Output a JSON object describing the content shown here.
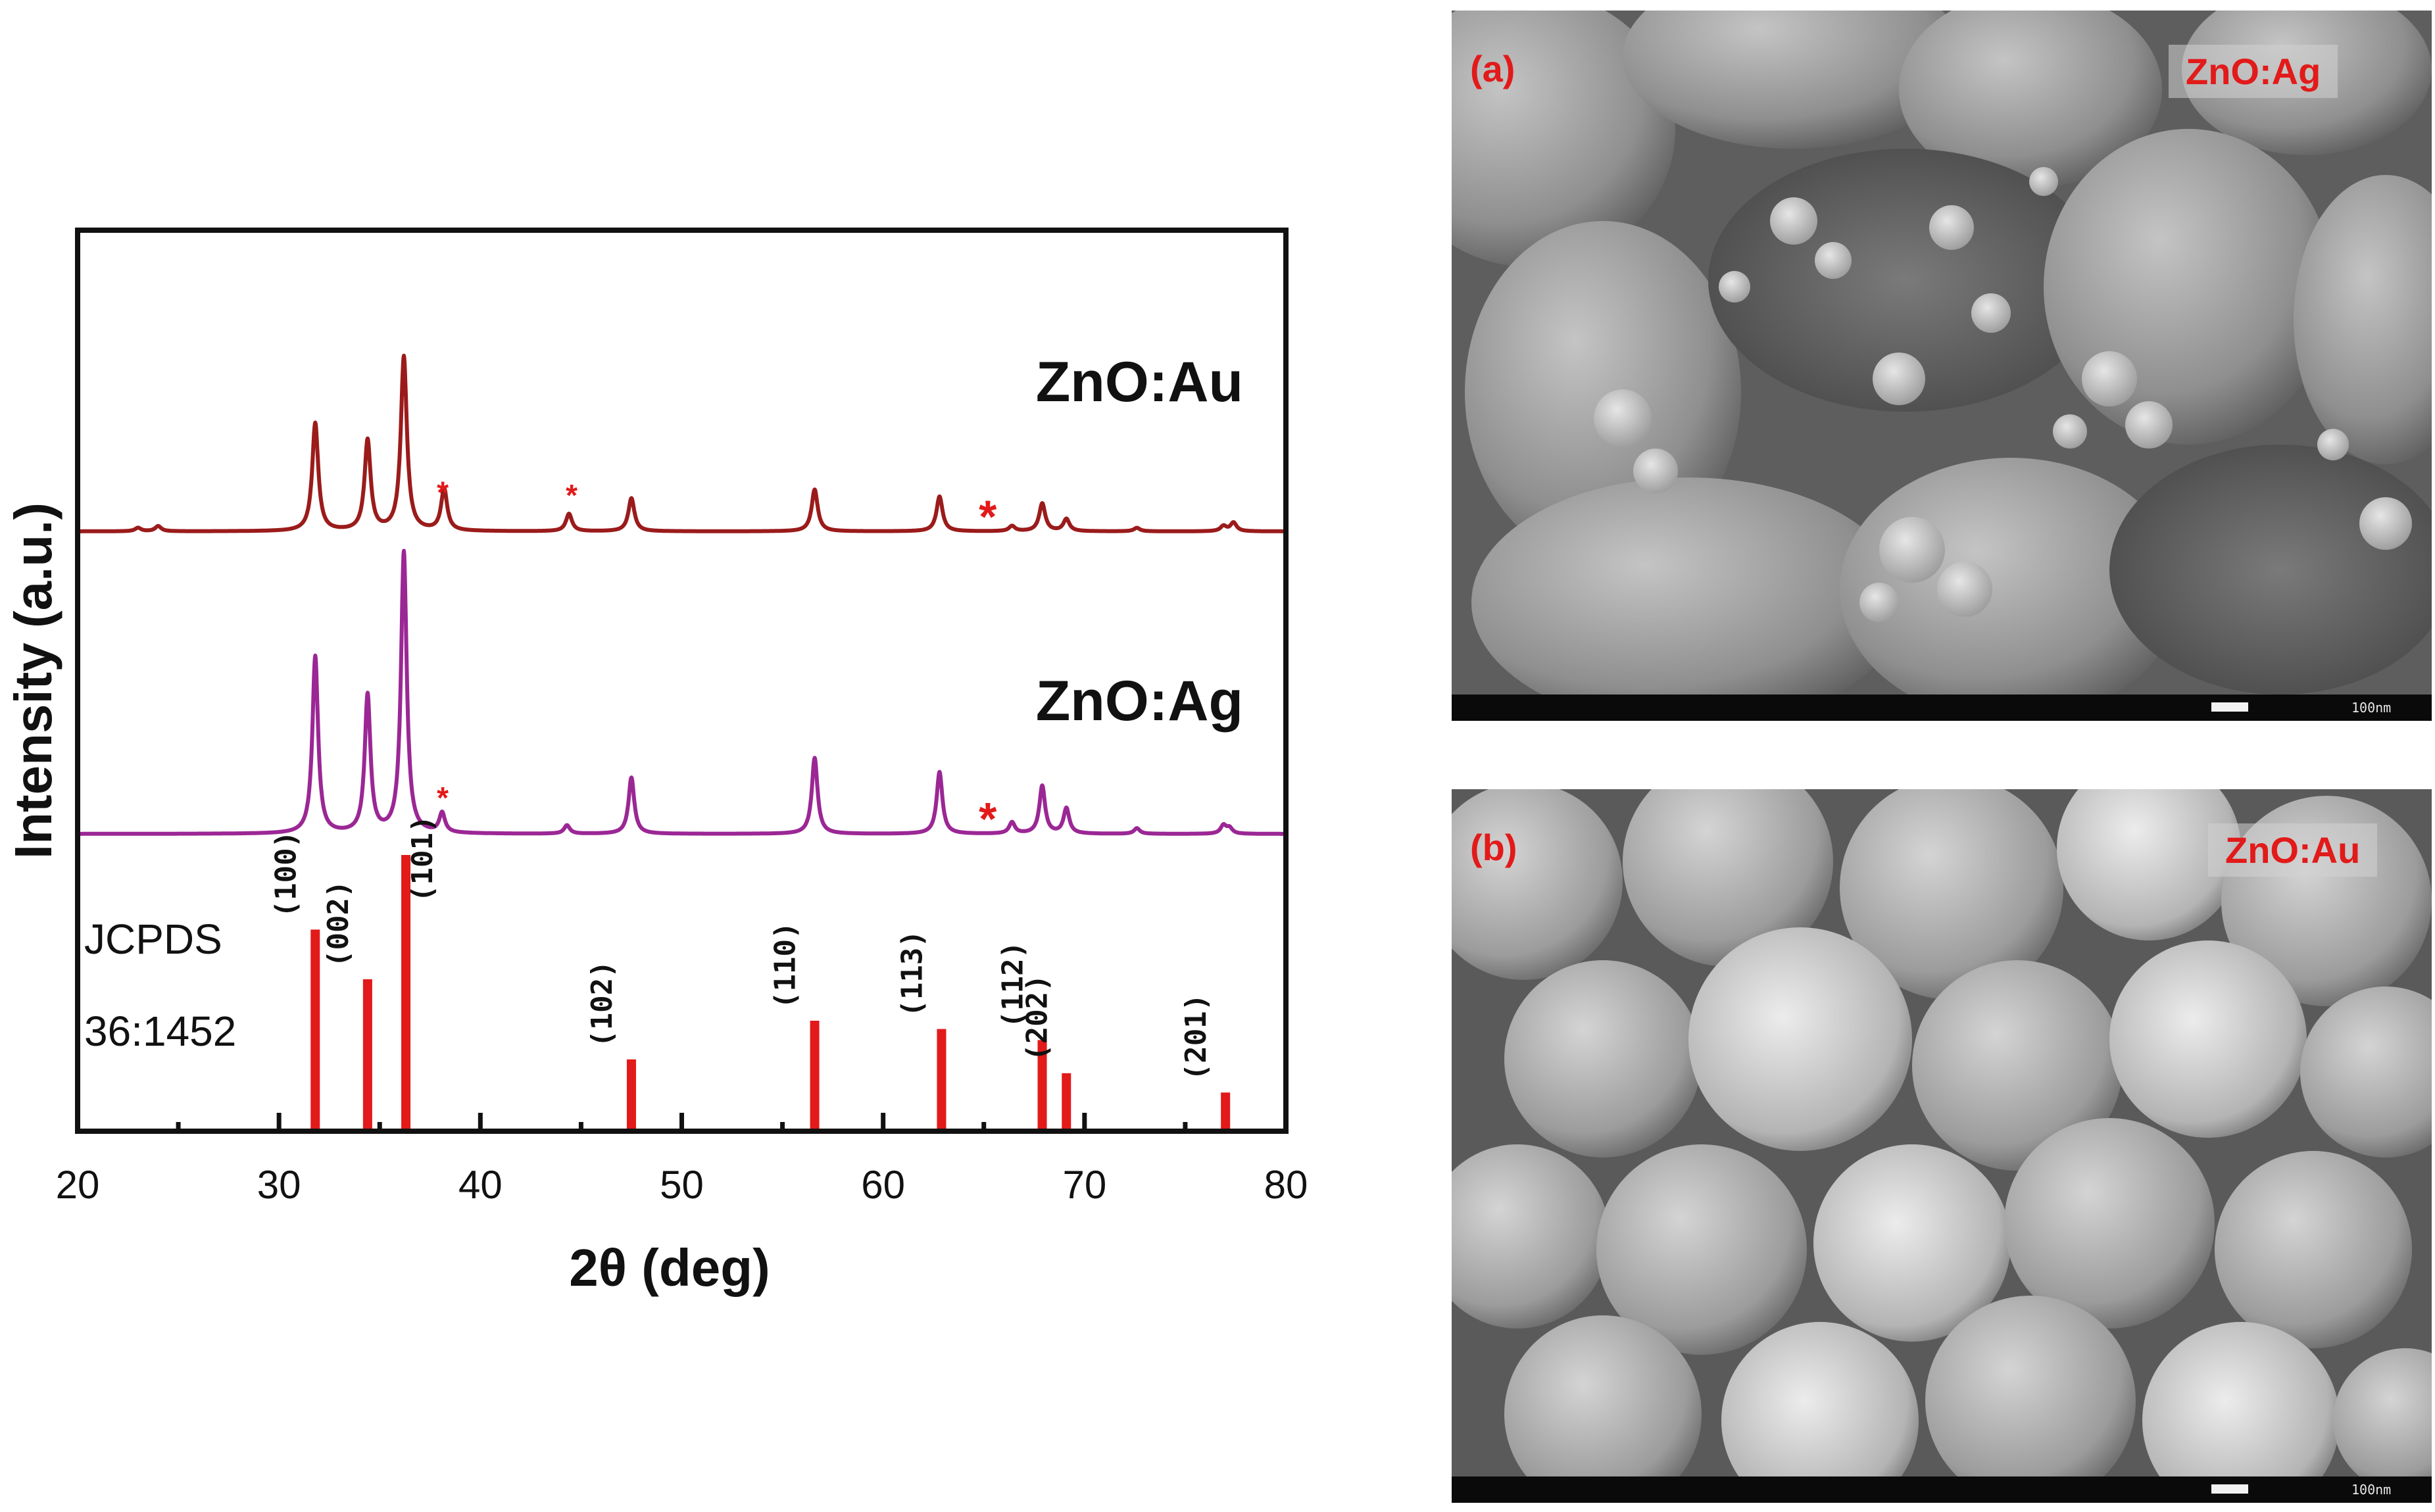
{
  "chart_data": {
    "type": "line",
    "xlabel": "2θ (deg)",
    "ylabel": "Intensity (a.u.)",
    "xlim": [
      20,
      80
    ],
    "x_ticks": [
      20,
      30,
      40,
      50,
      60,
      70,
      80
    ],
    "grid": false,
    "series": [
      {
        "name": "ZnO:Au",
        "color": "#9b1b1b",
        "peaks": [
          {
            "x": 23.0,
            "h": 0.02
          },
          {
            "x": 24.0,
            "h": 0.03
          },
          {
            "x": 31.8,
            "h": 0.62
          },
          {
            "x": 34.4,
            "h": 0.52
          },
          {
            "x": 36.2,
            "h": 1.0
          },
          {
            "x": 38.2,
            "h": 0.24
          },
          {
            "x": 44.4,
            "h": 0.1
          },
          {
            "x": 47.5,
            "h": 0.19
          },
          {
            "x": 56.6,
            "h": 0.24
          },
          {
            "x": 62.8,
            "h": 0.2
          },
          {
            "x": 66.4,
            "h": 0.03
          },
          {
            "x": 67.9,
            "h": 0.16
          },
          {
            "x": 69.1,
            "h": 0.07
          },
          {
            "x": 72.6,
            "h": 0.02
          },
          {
            "x": 76.9,
            "h": 0.03
          },
          {
            "x": 77.4,
            "h": 0.05
          }
        ],
        "asterisks_at": [
          38.0,
          44.4,
          65.0
        ]
      },
      {
        "name": "ZnO:Ag",
        "color": "#9b2795",
        "peaks": [
          {
            "x": 31.8,
            "h": 0.63
          },
          {
            "x": 34.4,
            "h": 0.49
          },
          {
            "x": 36.2,
            "h": 1.0
          },
          {
            "x": 38.1,
            "h": 0.07
          },
          {
            "x": 44.3,
            "h": 0.03
          },
          {
            "x": 47.5,
            "h": 0.2
          },
          {
            "x": 56.6,
            "h": 0.27
          },
          {
            "x": 62.8,
            "h": 0.22
          },
          {
            "x": 66.4,
            "h": 0.04
          },
          {
            "x": 67.9,
            "h": 0.17
          },
          {
            "x": 69.1,
            "h": 0.09
          },
          {
            "x": 72.6,
            "h": 0.02
          },
          {
            "x": 76.9,
            "h": 0.03
          },
          {
            "x": 77.2,
            "h": 0.02
          }
        ],
        "asterisks_at": [
          38.0,
          65.0
        ]
      }
    ],
    "reference": {
      "label_lines": [
        "JCPDS",
        "36:1452"
      ],
      "color": "#e21a1a",
      "lines": [
        {
          "x": 31.8,
          "h": 0.73,
          "hkl": "(100)"
        },
        {
          "x": 34.4,
          "h": 0.55,
          "hkl": "(002)"
        },
        {
          "x": 36.3,
          "h": 1.0,
          "hkl": "(101)"
        },
        {
          "x": 47.5,
          "h": 0.26,
          "hkl": "(102)"
        },
        {
          "x": 56.6,
          "h": 0.4,
          "hkl": "(110)"
        },
        {
          "x": 62.9,
          "h": 0.37,
          "hkl": "(113)"
        },
        {
          "x": 67.9,
          "h": 0.33,
          "hkl": "(112)"
        },
        {
          "x": 69.1,
          "h": 0.21,
          "hkl": "(202)"
        },
        {
          "x": 77.0,
          "h": 0.14,
          "hkl": "(201)"
        }
      ]
    }
  },
  "sem_panels": [
    {
      "letter": "(a)",
      "tag": "ZnO:Ag",
      "scale": "100nm"
    },
    {
      "letter": "(b)",
      "tag": "ZnO:Au",
      "scale": "100nm"
    }
  ]
}
